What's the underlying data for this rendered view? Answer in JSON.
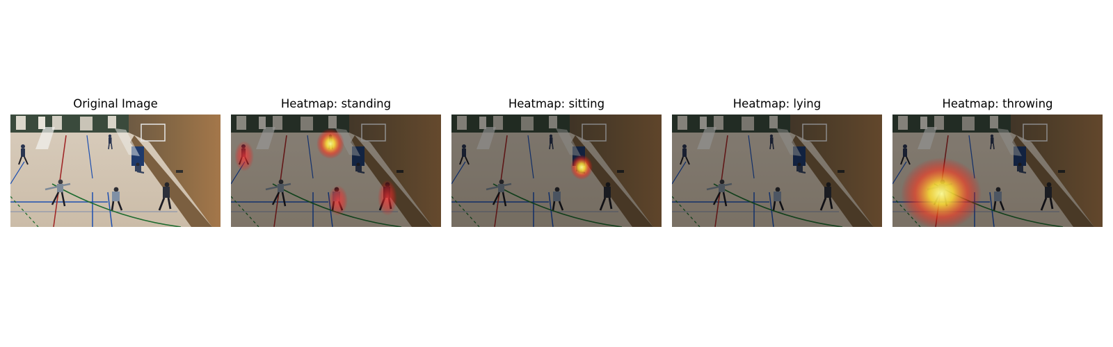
{
  "figure": {
    "panels": [
      {
        "title": "Original Image",
        "overlay": "none"
      },
      {
        "title": "Heatmap: standing",
        "overlay": "standing"
      },
      {
        "title": "Heatmap: sitting",
        "overlay": "sitting"
      },
      {
        "title": "Heatmap: lying",
        "overlay": "lying"
      },
      {
        "title": "Heatmap: throwing",
        "overlay": "throwing"
      }
    ]
  },
  "colors": {
    "heat_hot": "#ffff66",
    "heat_mid": "#ff2a2a",
    "dim_overlay": "#000000"
  }
}
